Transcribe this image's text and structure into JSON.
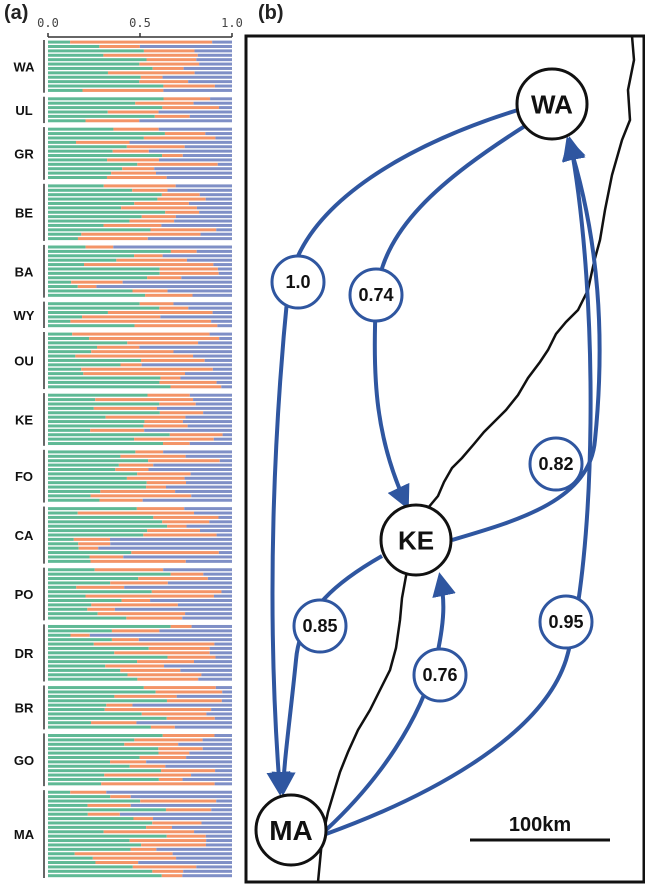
{
  "panel_a": {
    "label": "(a)",
    "ticks": [
      "0.0",
      "0.5",
      "1.0"
    ],
    "colors": [
      "#5fb995",
      "#f39467",
      "#7f8fc6"
    ],
    "populations": [
      {
        "name": "WA",
        "n": 12
      },
      {
        "name": "UL",
        "n": 6
      },
      {
        "name": "GR",
        "n": 12
      },
      {
        "name": "BE",
        "n": 13
      },
      {
        "name": "BA",
        "n": 12
      },
      {
        "name": "WY",
        "n": 6
      },
      {
        "name": "OU",
        "n": 13
      },
      {
        "name": "KE",
        "n": 12
      },
      {
        "name": "FO",
        "n": 12
      },
      {
        "name": "CA",
        "n": 13
      },
      {
        "name": "PO",
        "n": 12
      },
      {
        "name": "DR",
        "n": 13
      },
      {
        "name": "BR",
        "n": 10
      },
      {
        "name": "GO",
        "n": 12
      },
      {
        "name": "MA",
        "n": 20
      }
    ]
  },
  "panel_b": {
    "label": "(b)",
    "edge_color": "#2f56a0",
    "nodes": [
      {
        "id": "WA",
        "label": "WA"
      },
      {
        "id": "KE",
        "label": "KE"
      },
      {
        "id": "MA",
        "label": "MA"
      }
    ],
    "edges": [
      {
        "from": "WA",
        "to": "MA",
        "label": "1.0"
      },
      {
        "from": "WA",
        "to": "KE",
        "label": "0.74"
      },
      {
        "from": "KE",
        "to": "WA",
        "label": "0.82"
      },
      {
        "from": "KE",
        "to": "MA",
        "label": "0.85"
      },
      {
        "from": "MA",
        "to": "KE",
        "label": "0.76"
      },
      {
        "from": "MA",
        "to": "WA",
        "label": "0.95"
      }
    ],
    "scale_bar_label": "100km"
  }
}
